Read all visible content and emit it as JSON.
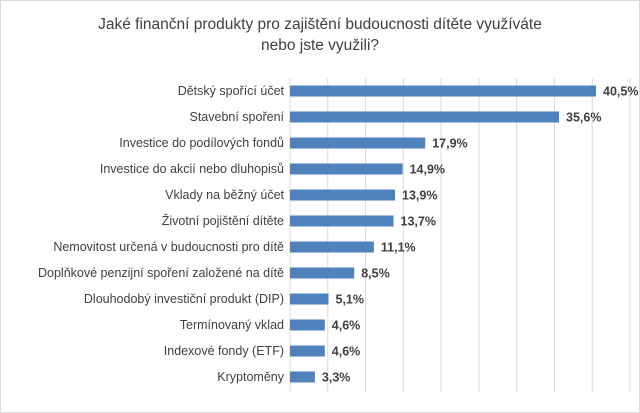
{
  "chart_data": {
    "type": "bar",
    "orientation": "horizontal",
    "title_lines": [
      "Jaké finanční produkty pro zajištění budoucnosti dítěte využíváte",
      "nebo jste využili?"
    ],
    "categories": [
      "Dětský spořící účet",
      "Stavební spoření",
      "Investice do podílových fondů",
      "Investice do akcií nebo dluhopisů",
      "Vklady na běžný účet",
      "Životní pojištění dítěte",
      "Nemovitost určená v budoucnosti pro dítě",
      "Doplňkové penzijní spoření založené na dítě",
      "Dlouhodobý investiční produkt (DIP)",
      "Termínovaný vklad",
      "Indexové fondy (ETF)",
      "Kryptoměny"
    ],
    "values": [
      40.5,
      35.6,
      17.9,
      14.9,
      13.9,
      13.7,
      11.1,
      8.5,
      5.1,
      4.6,
      4.6,
      3.3
    ],
    "value_labels": [
      "40,5%",
      "35,6%",
      "17,9%",
      "14,9%",
      "13,9%",
      "13,7%",
      "11,1%",
      "8,5%",
      "5,1%",
      "4,6%",
      "4,6%",
      "3,3%"
    ],
    "xlim": [
      0,
      45
    ],
    "grid": "vertical",
    "bar_color": "#4f81bd",
    "grid_color": "#d9d9d9"
  }
}
